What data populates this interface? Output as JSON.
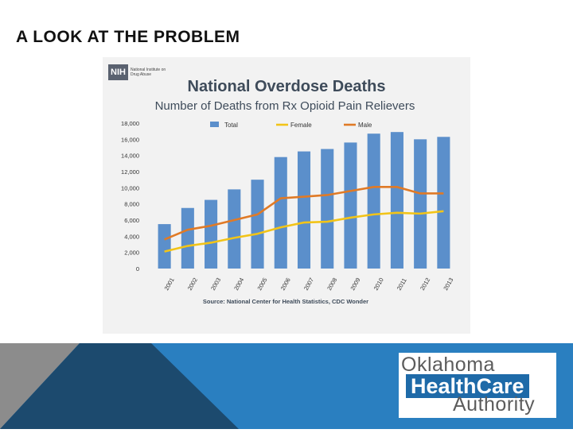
{
  "slide": {
    "title": "A LOOK AT THE PROBLEM"
  },
  "nih": {
    "badge": "NIH",
    "org": "National Institute on Drug Abuse"
  },
  "logo": {
    "line1": "Oklahoma",
    "line2": "HealthCare",
    "line3": "Authority"
  },
  "colors": {
    "bar": "#5b8fcb",
    "female": "#f2c418",
    "male": "#e07a26",
    "title": "#3e4b5a",
    "band_light": "#8c8c8c",
    "band_dark": "#1c4a6e",
    "band_blue": "#2a7fc0"
  },
  "chart_data": {
    "type": "bar",
    "title": "National Overdose Deaths",
    "subtitle": "Number of Deaths from Rx Opioid Pain Relievers",
    "source": "Source: National Center for Health Statistics, CDC Wonder",
    "categories": [
      "2001",
      "2002",
      "2003",
      "2004",
      "2005",
      "2006",
      "2007",
      "2008",
      "2009",
      "2010",
      "2011",
      "2012",
      "2013"
    ],
    "series": [
      {
        "name": "Total",
        "kind": "bar",
        "values": [
          5500,
          7500,
          8500,
          9800,
          11000,
          13800,
          14500,
          14800,
          15600,
          16700,
          16900,
          16000,
          16300
        ]
      },
      {
        "name": "Female",
        "kind": "line",
        "values": [
          2100,
          2800,
          3200,
          3800,
          4300,
          5100,
          5700,
          5800,
          6300,
          6700,
          6900,
          6800,
          7100
        ]
      },
      {
        "name": "Male",
        "kind": "line",
        "values": [
          3600,
          4800,
          5300,
          6000,
          6700,
          8700,
          8900,
          9100,
          9600,
          10100,
          10100,
          9300,
          9300
        ]
      }
    ],
    "yticks": [
      "0",
      "2,000",
      "4,000",
      "6,000",
      "8,000",
      "10,000",
      "12,000",
      "14,000",
      "16,000",
      "18,000"
    ],
    "ylim": [
      0,
      18000
    ],
    "legend": [
      "Total",
      "Female",
      "Male"
    ],
    "legend_position": "top"
  }
}
